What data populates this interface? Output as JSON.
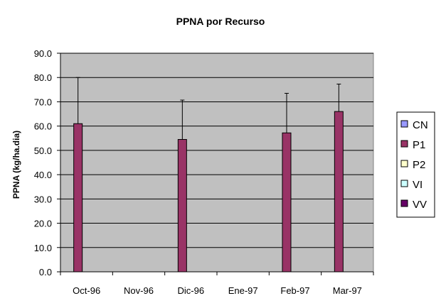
{
  "chart_data": {
    "type": "bar",
    "title": "PPNA por Recurso",
    "xlabel": "",
    "ylabel": "PPNA (kg/ha.dia)",
    "categories": [
      "Oct-96",
      "Nov-96",
      "Dic-96",
      "Ene-97",
      "Feb-97",
      "Mar-97"
    ],
    "ylim": [
      0,
      90
    ],
    "yticks": [
      "0.0",
      "10.0",
      "20.0",
      "30.0",
      "40.0",
      "50.0",
      "60.0",
      "70.0",
      "80.0",
      "90.0"
    ],
    "grid": true,
    "legend_position": "right",
    "plot_background": "#c0c0c0",
    "series": [
      {
        "name": "CN",
        "color": "#9999ff",
        "values": [
          null,
          null,
          null,
          null,
          null,
          null
        ],
        "errors": [
          null,
          null,
          null,
          null,
          null,
          null
        ]
      },
      {
        "name": "P1",
        "color": "#993366",
        "values": [
          61.0,
          null,
          54.5,
          null,
          57.2,
          66.0
        ],
        "errors": [
          19.0,
          null,
          16.2,
          null,
          16.3,
          11.3
        ]
      },
      {
        "name": "P2",
        "color": "#ffffcc",
        "values": [
          null,
          null,
          null,
          null,
          null,
          null
        ],
        "errors": [
          null,
          null,
          null,
          null,
          null,
          null
        ]
      },
      {
        "name": "VI",
        "color": "#ccffff",
        "values": [
          null,
          null,
          null,
          null,
          null,
          null
        ],
        "errors": [
          null,
          null,
          null,
          null,
          null,
          null
        ]
      },
      {
        "name": "VV",
        "color": "#660066",
        "values": [
          null,
          null,
          null,
          null,
          null,
          null
        ],
        "errors": [
          null,
          null,
          null,
          null,
          null,
          null
        ]
      }
    ]
  }
}
